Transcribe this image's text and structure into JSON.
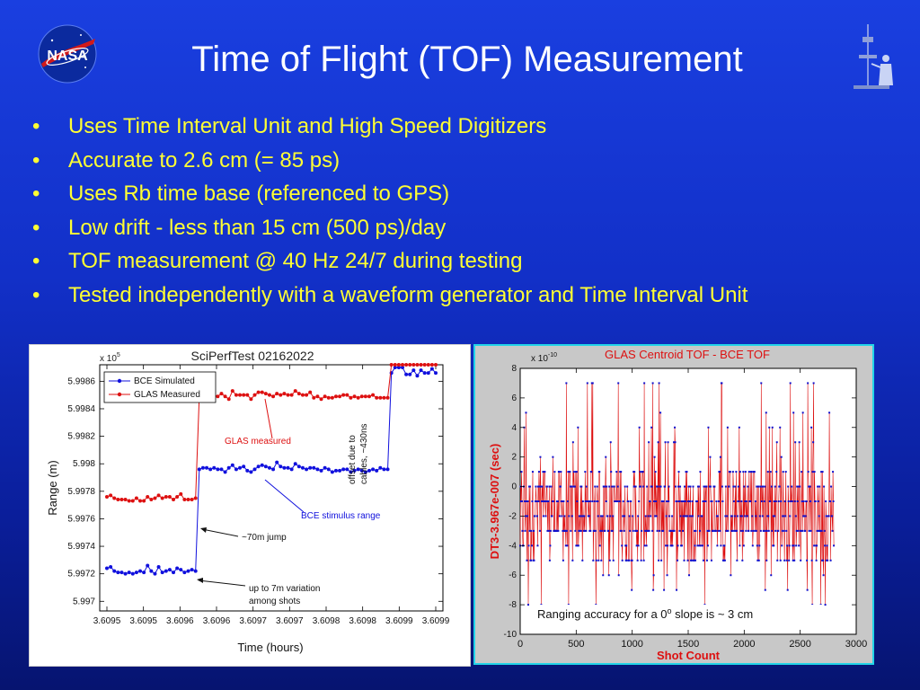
{
  "slide": {
    "title": "Time of Flight (TOF) Measurement",
    "logo_text": "NASA",
    "bullets": [
      "Uses Time Interval Unit and High Speed Digitizers",
      "Accurate to 2.6 cm (= 85 ps)",
      "Uses Rb time base (referenced to GPS)",
      "Low drift - less than 15 cm (500 ps)/day",
      "TOF measurement @ 40 Hz 24/7 during testing",
      "Tested independently with a waveform generator and Time Interval Unit"
    ],
    "bullet_glyph": "•",
    "colors": {
      "bullet_text": "#ffff33",
      "title": "#ffffff",
      "background": "#1230c8"
    },
    "icons": [
      "nasa-logo-icon",
      "technician-figure-icon"
    ]
  },
  "chart_data": [
    {
      "type": "line",
      "title": "SciPerfTest 02162022",
      "xlabel": "Time (hours)",
      "ylabel": "Range (m)",
      "y_multiplier": "x 10",
      "y_multiplier_exp": "5",
      "x_tick_labels": [
        "3.6095",
        "3.6095",
        "3.6096",
        "3.6096",
        "3.6097",
        "3.6097",
        "3.6098",
        "3.6098",
        "3.6099",
        "3.6099"
      ],
      "y_tick_labels": [
        "5.9986",
        "5.9984",
        "5.9982",
        "5.998",
        "5.9978",
        "5.9976",
        "5.9974",
        "5.9972",
        "5.997"
      ],
      "y_ticks": [
        5.9986,
        5.9984,
        5.9982,
        5.998,
        5.9978,
        5.9976,
        5.9974,
        5.9972,
        5.997
      ],
      "ylim": [
        5.99693,
        5.99872
      ],
      "legend": "top-left",
      "series": [
        {
          "name": "BCE Simulated",
          "color": "#1010dd",
          "values": [
            5.99724,
            5.99725,
            5.99722,
            5.99721,
            5.99721,
            5.9972,
            5.99721,
            5.9972,
            5.99721,
            5.99722,
            5.99721,
            5.99726,
            5.99722,
            5.9972,
            5.99725,
            5.99721,
            5.99722,
            5.99723,
            5.99721,
            5.99724,
            5.99723,
            5.99721,
            5.99722,
            5.99723,
            5.99722,
            5.99796,
            5.99797,
            5.99797,
            5.99796,
            5.99797,
            5.99796,
            5.99796,
            5.99794,
            5.99797,
            5.99799,
            5.99796,
            5.99797,
            5.99798,
            5.99795,
            5.99794,
            5.99796,
            5.99798,
            5.99799,
            5.99798,
            5.99797,
            5.99796,
            5.99801,
            5.99798,
            5.99797,
            5.99797,
            5.99796,
            5.998,
            5.99798,
            5.99797,
            5.99796,
            5.99797,
            5.99797,
            5.99796,
            5.99795,
            5.99797,
            5.99796,
            5.99794,
            5.99795,
            5.99795,
            5.99796,
            5.99796,
            5.99794,
            5.99795,
            5.99796,
            5.99795,
            5.99794,
            5.99795,
            5.99796,
            5.99795,
            5.99797,
            5.99796,
            5.99796,
            5.99866,
            5.9987,
            5.9987,
            5.9987,
            5.99865,
            5.99865,
            5.99868,
            5.99864,
            5.99868,
            5.99866,
            5.99866,
            5.99869,
            5.99866
          ]
        },
        {
          "name": "GLAS Measured",
          "color": "#dd1010",
          "values": [
            5.99776,
            5.99777,
            5.99775,
            5.99774,
            5.99774,
            5.99774,
            5.99773,
            5.99773,
            5.99775,
            5.99773,
            5.99773,
            5.99776,
            5.99774,
            5.99775,
            5.99777,
            5.99775,
            5.99776,
            5.99776,
            5.99774,
            5.99776,
            5.99778,
            5.99774,
            5.99774,
            5.99774,
            5.99775,
            5.99849,
            5.9985,
            5.99849,
            5.99848,
            5.9985,
            5.99849,
            5.99851,
            5.99849,
            5.99847,
            5.99853,
            5.9985,
            5.9985,
            5.9985,
            5.9985,
            5.99847,
            5.9985,
            5.99852,
            5.99852,
            5.99851,
            5.9985,
            5.99849,
            5.99851,
            5.9985,
            5.99851,
            5.9985,
            5.9985,
            5.99853,
            5.99851,
            5.9985,
            5.9985,
            5.99852,
            5.99848,
            5.99849,
            5.99847,
            5.99849,
            5.99848,
            5.99848,
            5.99849,
            5.99849,
            5.9985,
            5.9985,
            5.99848,
            5.99849,
            5.99848,
            5.99849,
            5.99849,
            5.99849,
            5.9985,
            5.99848,
            5.99848,
            5.99848,
            5.99848,
            5.99877,
            5.9988,
            5.9988,
            5.9988,
            5.9988,
            5.9988,
            5.9988,
            5.9988,
            5.9988,
            5.9988,
            5.9988,
            5.9988,
            5.9988
          ]
        }
      ],
      "annotations": {
        "glas_measured": "GLAS measured",
        "bce_stimulus": "BCE stimulus range",
        "jump": "~70m jump",
        "variation_line1": "up to 7m variation",
        "variation_line2": "among shots",
        "offset_line1": "offset due to",
        "offset_line2": "cables, ~430ns"
      },
      "grid": false
    },
    {
      "type": "line",
      "title": "GLAS Centroid TOF - BCE TOF",
      "xlabel": "Shot Count",
      "ylabel": "DT3-3.967e-007 (sec)",
      "y_multiplier": "x 10",
      "y_multiplier_exp": "-10",
      "xlim": [
        0,
        3000
      ],
      "ylim": [
        -10,
        8
      ],
      "x_ticks": [
        0,
        500,
        1000,
        1500,
        2000,
        2500,
        3000
      ],
      "y_ticks": [
        8,
        6,
        4,
        2,
        0,
        -2,
        -4,
        -6,
        -8,
        -10
      ],
      "x_tick_labels": [
        "0",
        "500",
        "1000",
        "1500",
        "2000",
        "2500",
        "3000"
      ],
      "y_tick_labels": [
        "8",
        "6",
        "4",
        "2",
        "0",
        "-2",
        "-4",
        "-6",
        "-8",
        "-10"
      ],
      "series": [
        {
          "line_color": "#dd1010",
          "marker_color": "#1010cc",
          "n_shots": 2800,
          "levels": [
            -7,
            -6,
            -5,
            -4,
            -3,
            -2,
            -1,
            0,
            1,
            2,
            3,
            4,
            5,
            7
          ],
          "min": -8,
          "max": 7
        }
      ],
      "annotation": "Ranging accuracy for a 0",
      "annotation_sup": "o",
      "annotation_tail": " slope is ~ 3 cm",
      "grid": false
    }
  ]
}
